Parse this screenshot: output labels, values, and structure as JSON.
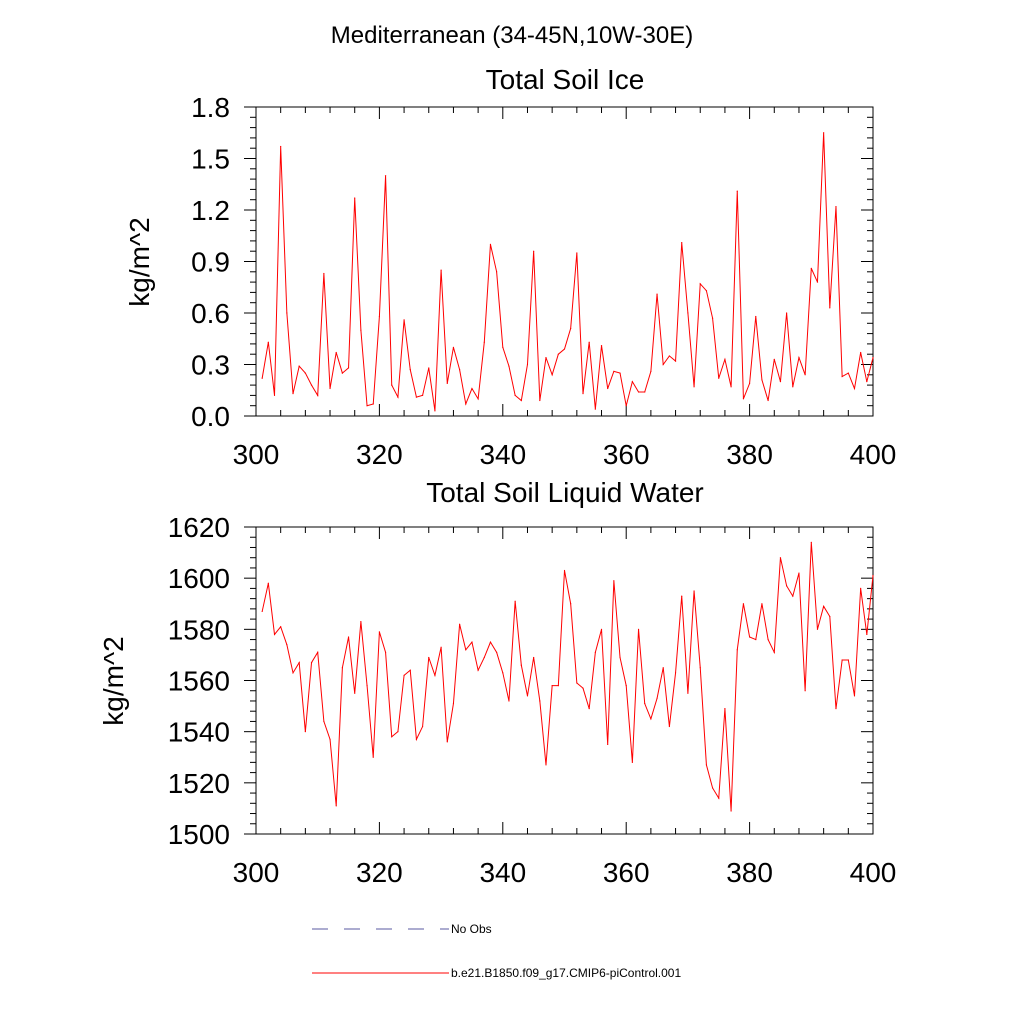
{
  "page": {
    "title": "Mediterranean (34-45N,10W-30E)"
  },
  "colors": {
    "series": "#ff0000",
    "no_obs": "#5a5aa0",
    "axis": "#000000",
    "background": "#ffffff"
  },
  "legend": {
    "no_obs_label": "No Obs",
    "model_label": "b.e21.B1850.f09_g17.CMIP6-piControl.001"
  },
  "chart_data": [
    {
      "type": "line",
      "title": "Total Soil Ice",
      "xlabel": "",
      "ylabel": "kg/m^2",
      "xlim": [
        300,
        400
      ],
      "ylim": [
        0.0,
        1.8
      ],
      "xticks": [
        300,
        320,
        340,
        360,
        380,
        400
      ],
      "yticks": [
        0.0,
        0.3,
        0.6,
        0.9,
        1.2,
        1.5,
        1.8
      ],
      "ytick_labels": [
        "0.0",
        "0.3",
        "0.6",
        "0.9",
        "1.2",
        "1.5",
        "1.8"
      ],
      "grid": false,
      "series": [
        {
          "name": "b.e21.B1850.f09_g17.CMIP6-piControl.001",
          "x_start": 301,
          "x_step": 1,
          "values": [
            0.22,
            0.43,
            0.12,
            1.57,
            0.6,
            0.13,
            0.29,
            0.25,
            0.18,
            0.12,
            0.83,
            0.16,
            0.37,
            0.25,
            0.28,
            1.27,
            0.5,
            0.06,
            0.07,
            0.58,
            1.4,
            0.18,
            0.11,
            0.56,
            0.27,
            0.11,
            0.12,
            0.28,
            0.03,
            0.85,
            0.19,
            0.4,
            0.27,
            0.07,
            0.16,
            0.1,
            0.43,
            1.0,
            0.84,
            0.4,
            0.29,
            0.12,
            0.09,
            0.3,
            0.96,
            0.09,
            0.34,
            0.24,
            0.36,
            0.39,
            0.51,
            0.95,
            0.13,
            0.43,
            0.04,
            0.41,
            0.16,
            0.26,
            0.25,
            0.06,
            0.2,
            0.14,
            0.14,
            0.26,
            0.71,
            0.3,
            0.35,
            0.32,
            1.01,
            0.6,
            0.17,
            0.77,
            0.73,
            0.57,
            0.22,
            0.33,
            0.17,
            1.31,
            0.1,
            0.19,
            0.58,
            0.21,
            0.09,
            0.33,
            0.2,
            0.6,
            0.17,
            0.34,
            0.24,
            0.86,
            0.78,
            1.65,
            0.63,
            1.22,
            0.23,
            0.25,
            0.16,
            0.37,
            0.2,
            0.34
          ]
        }
      ]
    },
    {
      "type": "line",
      "title": "Total Soil Liquid Water",
      "xlabel": "",
      "ylabel": "kg/m^2",
      "xlim": [
        300,
        400
      ],
      "ylim": [
        1500,
        1620
      ],
      "xticks": [
        300,
        320,
        340,
        360,
        380,
        400
      ],
      "yticks": [
        1500,
        1520,
        1540,
        1560,
        1580,
        1600,
        1620
      ],
      "ytick_labels": [
        "1500",
        "1520",
        "1540",
        "1560",
        "1580",
        "1600",
        "1620"
      ],
      "grid": false,
      "series": [
        {
          "name": "b.e21.B1850.f09_g17.CMIP6-piControl.001",
          "x_start": 301,
          "x_step": 1,
          "values": [
            1587,
            1598,
            1578,
            1581,
            1574,
            1563,
            1567,
            1540,
            1567,
            1571,
            1544,
            1537,
            1511,
            1565,
            1577,
            1555,
            1583,
            1558,
            1530,
            1579,
            1571,
            1538,
            1540,
            1562,
            1564,
            1537,
            1542,
            1569,
            1562,
            1573,
            1536,
            1551,
            1582,
            1572,
            1575,
            1564,
            1569,
            1575,
            1571,
            1563,
            1552,
            1591,
            1566,
            1554,
            1569,
            1552,
            1527,
            1558,
            1558,
            1603,
            1590,
            1559,
            1557,
            1549,
            1571,
            1580,
            1535,
            1599,
            1569,
            1558,
            1528,
            1580,
            1551,
            1545,
            1553,
            1565,
            1542,
            1563,
            1593,
            1555,
            1595,
            1565,
            1527,
            1518,
            1514,
            1549,
            1509,
            1572,
            1590,
            1577,
            1576,
            1590,
            1576,
            1571,
            1608,
            1597,
            1593,
            1602,
            1556,
            1614,
            1580,
            1589,
            1585,
            1549,
            1568,
            1568,
            1554,
            1596,
            1578,
            1601
          ]
        }
      ]
    }
  ]
}
